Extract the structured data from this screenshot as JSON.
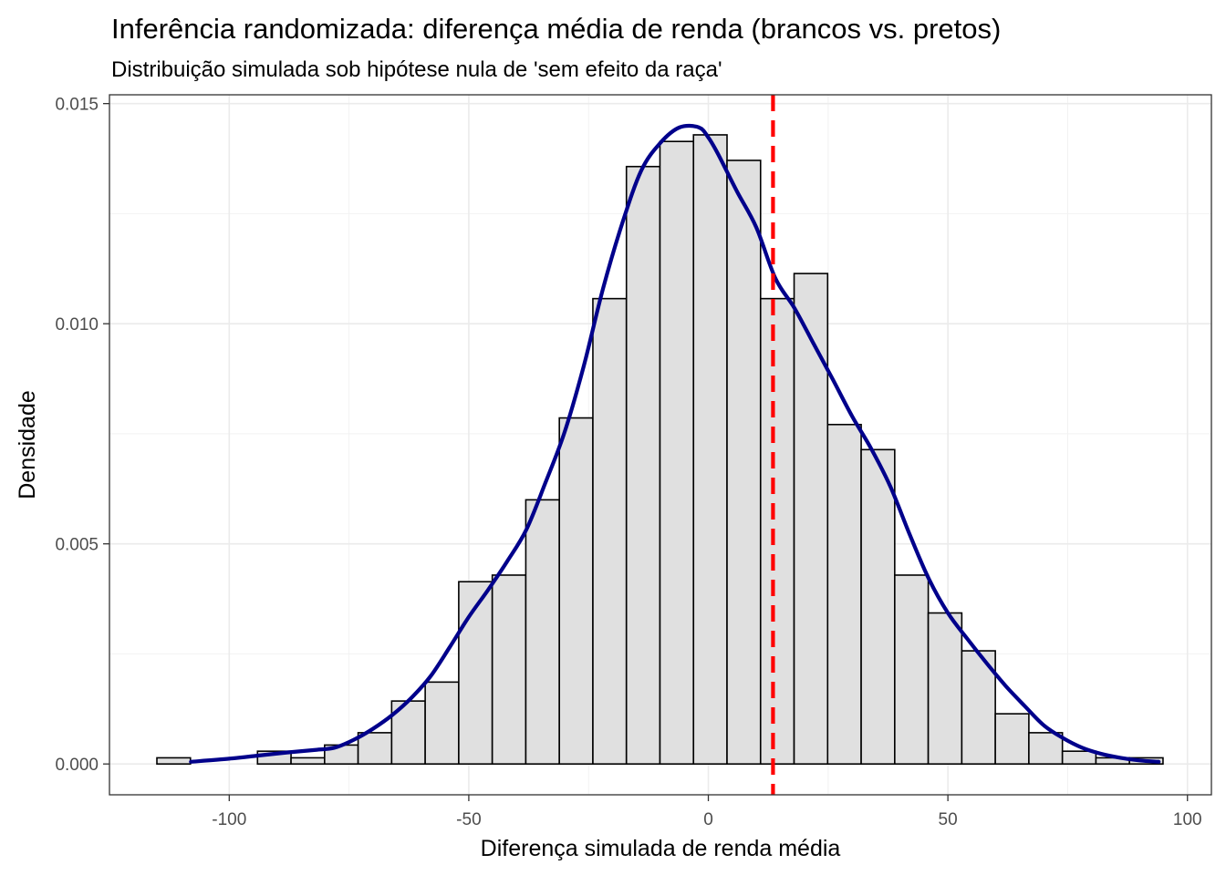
{
  "chart_data": {
    "type": "histogram",
    "title": "Inferência randomizada: diferença média de renda (brancos vs. pretos)",
    "subtitle": "Distribuição simulada sob hipótese nula de 'sem efeito da raça'",
    "xlabel": "Diferença simulada de renda média",
    "ylabel": "Densidade",
    "xlim": [
      -125,
      105
    ],
    "ylim": [
      -0.0007,
      0.0152
    ],
    "x_ticks": [
      -100,
      -50,
      0,
      50,
      100
    ],
    "x_tick_labels": [
      "-100",
      "-50",
      "0",
      "50",
      "100"
    ],
    "y_ticks": [
      0,
      0.005,
      0.01,
      0.015
    ],
    "y_tick_labels": [
      "0.000",
      "0.005",
      "0.010",
      "0.015"
    ],
    "grid": true,
    "bin_width": 7,
    "bins": [
      {
        "x0": -115.1,
        "x1": -108.1,
        "density": 0.00014
      },
      {
        "x0": -108.1,
        "x1": -101.1,
        "density": 0.0
      },
      {
        "x0": -101.1,
        "x1": -94.1,
        "density": 0.0
      },
      {
        "x0": -94.1,
        "x1": -87.1,
        "density": 0.00029
      },
      {
        "x0": -87.1,
        "x1": -80.1,
        "density": 0.00014
      },
      {
        "x0": -80.1,
        "x1": -73.1,
        "density": 0.00043
      },
      {
        "x0": -73.1,
        "x1": -66.1,
        "density": 0.00071
      },
      {
        "x0": -66.1,
        "x1": -59.1,
        "density": 0.00143
      },
      {
        "x0": -59.1,
        "x1": -52.1,
        "density": 0.00186
      },
      {
        "x0": -52.1,
        "x1": -45.1,
        "density": 0.00414
      },
      {
        "x0": -45.1,
        "x1": -38.1,
        "density": 0.00429
      },
      {
        "x0": -38.1,
        "x1": -31.1,
        "density": 0.006
      },
      {
        "x0": -31.1,
        "x1": -24.1,
        "density": 0.00786
      },
      {
        "x0": -24.1,
        "x1": -17.1,
        "density": 0.01057
      },
      {
        "x0": -17.1,
        "x1": -10.1,
        "density": 0.01357
      },
      {
        "x0": -10.1,
        "x1": -3.1,
        "density": 0.01414
      },
      {
        "x0": -3.1,
        "x1": 3.9,
        "density": 0.01429
      },
      {
        "x0": 3.9,
        "x1": 10.9,
        "density": 0.01371
      },
      {
        "x0": 10.9,
        "x1": 17.9,
        "density": 0.01057
      },
      {
        "x0": 17.9,
        "x1": 24.9,
        "density": 0.01114
      },
      {
        "x0": 24.9,
        "x1": 31.9,
        "density": 0.00771
      },
      {
        "x0": 31.9,
        "x1": 38.9,
        "density": 0.00714
      },
      {
        "x0": 38.9,
        "x1": 45.9,
        "density": 0.00429
      },
      {
        "x0": 45.9,
        "x1": 52.9,
        "density": 0.00343
      },
      {
        "x0": 52.9,
        "x1": 59.9,
        "density": 0.00257
      },
      {
        "x0": 59.9,
        "x1": 66.9,
        "density": 0.00114
      },
      {
        "x0": 66.9,
        "x1": 73.9,
        "density": 0.00071
      },
      {
        "x0": 73.9,
        "x1": 80.9,
        "density": 0.00029
      },
      {
        "x0": 80.9,
        "x1": 87.9,
        "density": 0.00014
      },
      {
        "x0": 87.9,
        "x1": 94.9,
        "density": 0.00014
      }
    ],
    "density_curve": {
      "x": [
        -108,
        -100,
        -94,
        -88,
        -82,
        -78,
        -74,
        -70,
        -66,
        -62,
        -58,
        -54,
        -50,
        -46,
        -42,
        -38,
        -34,
        -30,
        -26,
        -22,
        -18,
        -14,
        -10,
        -6,
        -2,
        0,
        2,
        6,
        10,
        14,
        18,
        22,
        26,
        30,
        34,
        38,
        42,
        46,
        50,
        54,
        58,
        62,
        66,
        70,
        74,
        78,
        82,
        86,
        90,
        94
      ],
      "y": [
        5e-05,
        0.00012,
        0.00019,
        0.00026,
        0.00032,
        0.00037,
        0.00055,
        0.0008,
        0.00111,
        0.0015,
        0.00199,
        0.00265,
        0.00334,
        0.00395,
        0.0046,
        0.00532,
        0.00639,
        0.00754,
        0.00904,
        0.01079,
        0.01227,
        0.01348,
        0.01411,
        0.01446,
        0.01446,
        0.01423,
        0.01386,
        0.013,
        0.01219,
        0.01103,
        0.01035,
        0.00954,
        0.00873,
        0.0079,
        0.00716,
        0.0063,
        0.00522,
        0.00421,
        0.00343,
        0.00285,
        0.0023,
        0.00178,
        0.00132,
        0.00088,
        0.00059,
        0.00037,
        0.00023,
        0.00014,
        8e-05,
        5e-05
      ],
      "color": "#00008b"
    },
    "observed_value": 13.5,
    "observed_line_color": "#ff0000",
    "bar_fill": "#e0e0e0",
    "bar_stroke": "#000000"
  }
}
